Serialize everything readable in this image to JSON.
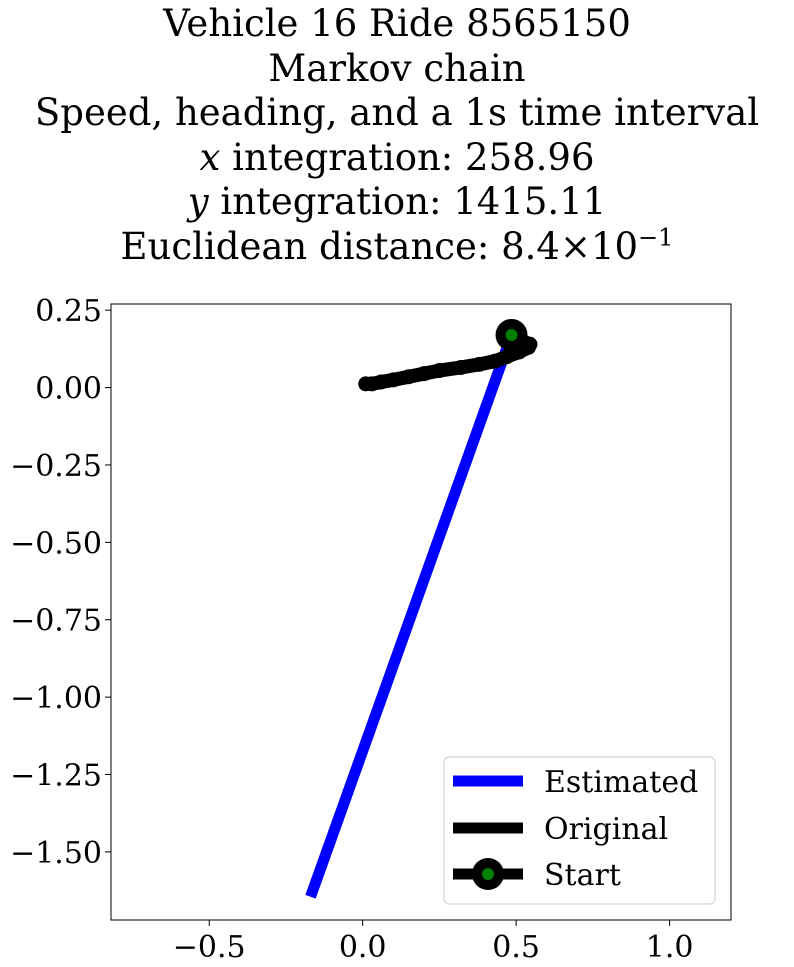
{
  "title": {
    "line1": "Vehicle 16 Ride 8565150",
    "line2": "Markov chain",
    "line3": "Speed, heading, and a 1s time interval",
    "line4_var": "x",
    "line4_rest": " integration: 258.96",
    "line5_var": "y",
    "line5_rest": " integration: 1415.11",
    "line6_prefix": "Euclidean distance: 8.4×10",
    "line6_exp": "−1"
  },
  "chart_data": {
    "type": "line",
    "xlim": [
      -0.82,
      1.2
    ],
    "ylim": [
      -1.72,
      0.27
    ],
    "xticks": [
      -0.5,
      0.0,
      0.5,
      1.0
    ],
    "xtick_labels": [
      "−0.5",
      "0.0",
      "0.5",
      "1.0"
    ],
    "yticks": [
      0.25,
      0.0,
      -0.25,
      -0.5,
      -0.75,
      -1.0,
      -1.25,
      -1.5
    ],
    "ytick_labels": [
      "0.25",
      "0.00",
      "−0.25",
      "−0.50",
      "−0.75",
      "−1.00",
      "−1.25",
      "−1.50"
    ],
    "grid": false,
    "legend_position": "lower right",
    "series": [
      {
        "name": "Estimated",
        "color": "#0000ff",
        "x": [
          0.485,
          -0.17
        ],
        "y": [
          0.17,
          -1.645
        ]
      },
      {
        "name": "Original",
        "color": "#000000",
        "x": [
          0.485,
          0.5,
          0.52,
          0.545,
          0.54,
          0.51,
          0.47,
          0.43,
          0.38,
          0.32,
          0.25,
          0.2,
          0.15,
          0.1,
          0.06,
          0.03,
          0.01
        ],
        "y": [
          0.17,
          0.16,
          0.15,
          0.14,
          0.13,
          0.115,
          0.1,
          0.085,
          0.075,
          0.065,
          0.055,
          0.045,
          0.035,
          0.025,
          0.018,
          0.012,
          0.012
        ]
      },
      {
        "name": "Start",
        "color": "#000000",
        "marker_color": "#008000",
        "x": [
          0.485
        ],
        "y": [
          0.17
        ]
      }
    ]
  }
}
